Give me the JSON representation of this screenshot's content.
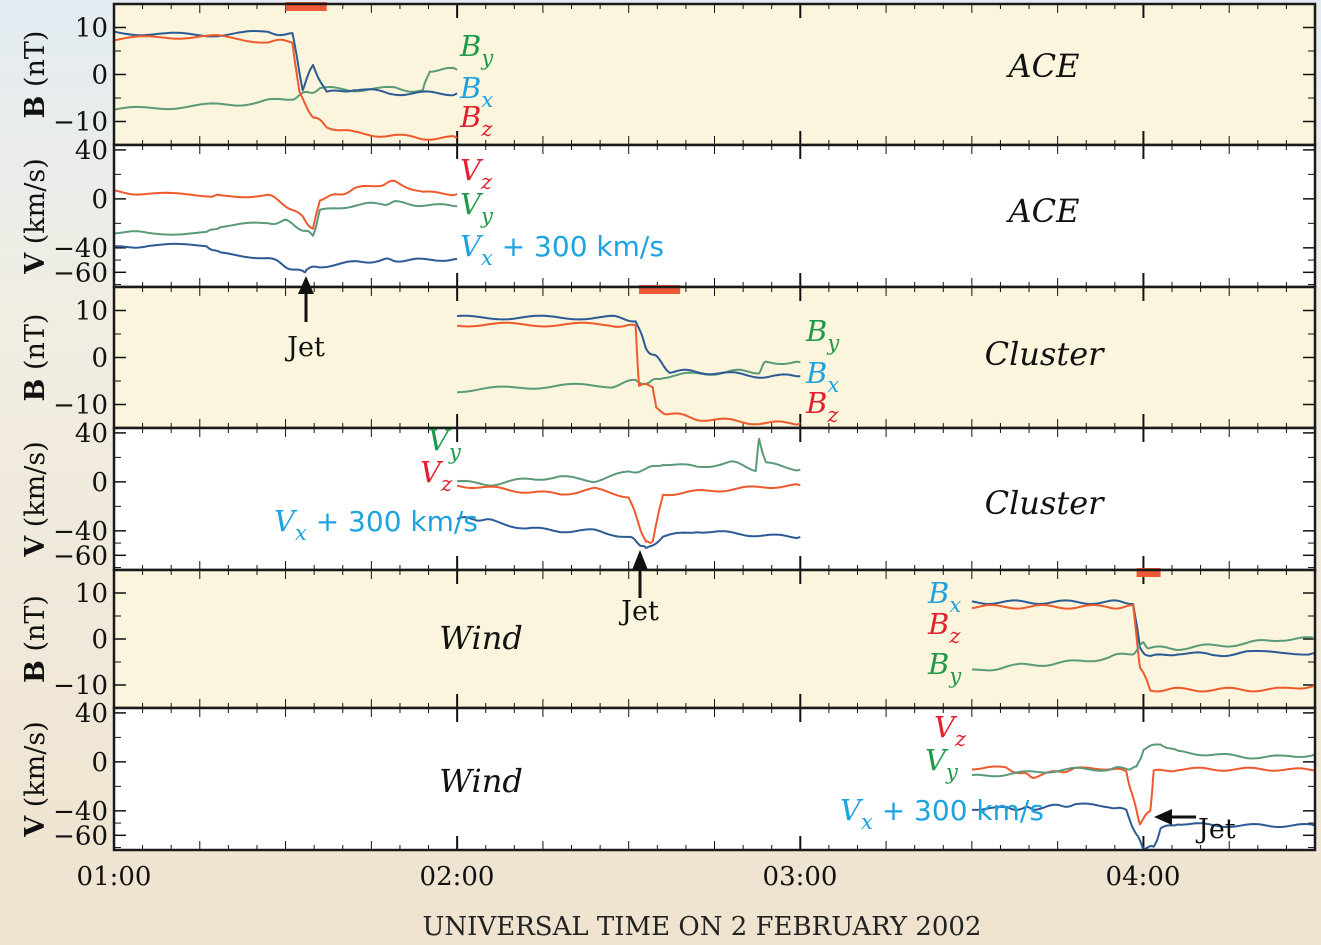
{
  "title": "",
  "x_axis": {
    "label": "UNIVERSAL TIME ON 2 FEBRUARY 2002",
    "ticks": [
      "01:00",
      "02:00",
      "03:00",
      "04:00"
    ]
  },
  "colors": {
    "bx": "#2c5a95",
    "by": "#5a9a78",
    "bz": "#ee5a2c",
    "label_x": "#1ea3e0",
    "label_y": "#1f9a4a",
    "label_z": "#e2202e",
    "shade": "#faf5dc",
    "marker": "#ee5a38"
  },
  "chart_data": [
    {
      "type": "line",
      "panel": "ACE magnetic field",
      "spacecraft": "ACE",
      "ylabel": "B (nT)",
      "yticks": [
        "10",
        "0",
        "−10"
      ],
      "ylim": [
        -15,
        15
      ],
      "xlim_hours": [
        1.0,
        4.5
      ],
      "interval_marker_hours": [
        1.5,
        1.62
      ],
      "series": [
        {
          "name": "By",
          "x": [
            1.0,
            1.15,
            1.3,
            1.42,
            1.52,
            1.56,
            1.6,
            1.7,
            1.82,
            1.9,
            1.92,
            2.0
          ],
          "y": [
            -7.5,
            -7,
            -6.5,
            -6,
            -5,
            -4,
            -3,
            -3.2,
            -3,
            -3.5,
            1,
            1
          ]
        },
        {
          "name": "Bx",
          "x": [
            1.0,
            1.15,
            1.3,
            1.45,
            1.52,
            1.55,
            1.58,
            1.62,
            1.7,
            1.8,
            1.9,
            2.0
          ],
          "y": [
            9,
            8.5,
            8.5,
            9,
            8.5,
            -3,
            2,
            -4,
            -3,
            -4,
            -4,
            -4
          ]
        },
        {
          "name": "Bz",
          "x": [
            1.0,
            1.15,
            1.3,
            1.45,
            1.52,
            1.54,
            1.58,
            1.62,
            1.7,
            1.8,
            1.9,
            2.0
          ],
          "y": [
            7.5,
            8,
            8,
            7,
            7,
            -4,
            -9,
            -11,
            -12.5,
            -13,
            -13.5,
            -13.5
          ]
        }
      ]
    },
    {
      "type": "line",
      "panel": "ACE velocity",
      "spacecraft": "ACE",
      "ylabel": "V (km/s)",
      "yticks": [
        "40",
        "0",
        "−40",
        "−60"
      ],
      "ylim": [
        -70,
        40
      ],
      "xlim_hours": [
        1.0,
        4.5
      ],
      "series": [
        {
          "name": "Vz",
          "x": [
            1.0,
            1.1,
            1.28,
            1.31,
            1.45,
            1.5,
            1.55,
            1.58,
            1.6,
            1.65,
            1.7,
            1.78,
            1.82,
            1.9,
            2.0
          ],
          "y": [
            6,
            4,
            3,
            2,
            3,
            -5,
            -15,
            -25,
            0,
            3,
            8,
            12,
            14,
            5,
            4
          ]
        },
        {
          "name": "Vy",
          "x": [
            1.0,
            1.1,
            1.27,
            1.31,
            1.45,
            1.5,
            1.55,
            1.58,
            1.6,
            1.7,
            1.78,
            1.82,
            1.9,
            2.0
          ],
          "y": [
            -27,
            -28,
            -28,
            -22,
            -20,
            -18,
            -25,
            -30,
            -10,
            -5,
            -4,
            -3,
            -5,
            -6
          ]
        },
        {
          "name": "Vx + 300 km/s",
          "x": [
            1.0,
            1.1,
            1.27,
            1.31,
            1.45,
            1.5,
            1.55,
            1.56,
            1.6,
            1.7,
            1.78,
            1.82,
            1.9,
            2.0
          ],
          "y": [
            -40,
            -38,
            -38,
            -45,
            -48,
            -55,
            -60,
            -58,
            -55,
            -52,
            -50,
            -50,
            -50,
            -49
          ]
        }
      ],
      "annotations": [
        {
          "text": "Jet",
          "x_hours": 1.56,
          "arrow": "up"
        }
      ]
    },
    {
      "type": "line",
      "panel": "Cluster magnetic field",
      "spacecraft": "Cluster",
      "ylabel": "B (nT)",
      "yticks": [
        "10",
        "0",
        "−10"
      ],
      "ylim": [
        -15,
        15
      ],
      "xlim_hours": [
        1.0,
        4.5
      ],
      "interval_marker_hours": [
        2.53,
        2.65
      ],
      "series": [
        {
          "name": "By",
          "x": [
            2.0,
            2.15,
            2.3,
            2.45,
            2.52,
            2.56,
            2.6,
            2.7,
            2.8,
            2.88,
            2.9,
            3.0
          ],
          "y": [
            -7,
            -6.5,
            -6,
            -6,
            -5,
            -5.5,
            -4,
            -3.5,
            -3,
            -3,
            -1,
            -1
          ]
        },
        {
          "name": "Bx",
          "x": [
            2.0,
            2.15,
            2.3,
            2.45,
            2.52,
            2.55,
            2.58,
            2.62,
            2.7,
            2.8,
            2.9,
            3.0
          ],
          "y": [
            8.5,
            8.5,
            8.5,
            8.5,
            8,
            2,
            0,
            -3,
            -3,
            -3.5,
            -4,
            -4
          ]
        },
        {
          "name": "Bz",
          "x": [
            2.0,
            2.15,
            2.3,
            2.45,
            2.52,
            2.53,
            2.57,
            2.58,
            2.62,
            2.7,
            2.8,
            2.9,
            3.0
          ],
          "y": [
            7,
            7,
            7,
            7,
            6.5,
            -6,
            -6,
            -11,
            -12,
            -13,
            -13.5,
            -14,
            -14
          ]
        }
      ]
    },
    {
      "type": "line",
      "panel": "Cluster velocity",
      "spacecraft": "Cluster",
      "ylabel": "V (km/s)",
      "yticks": [
        "40",
        "0",
        "−40",
        "−60"
      ],
      "ylim": [
        -70,
        40
      ],
      "xlim_hours": [
        1.0,
        4.5
      ],
      "series": [
        {
          "name": "Vy",
          "x": [
            2.0,
            2.1,
            2.2,
            2.3,
            2.4,
            2.5,
            2.55,
            2.6,
            2.7,
            2.8,
            2.87,
            2.88,
            2.9,
            3.0
          ],
          "y": [
            0,
            -2,
            2,
            4,
            1,
            8,
            10,
            15,
            12,
            16,
            10,
            35,
            15,
            10
          ]
        },
        {
          "name": "Vz",
          "x": [
            2.0,
            2.1,
            2.2,
            2.3,
            2.4,
            2.5,
            2.53,
            2.55,
            2.57,
            2.6,
            2.7,
            2.8,
            2.9,
            3.0
          ],
          "y": [
            -3,
            -5,
            -8,
            -10,
            -6,
            -12,
            -35,
            -50,
            -48,
            -10,
            -8,
            -6,
            -4,
            -3
          ]
        },
        {
          "name": "Vx + 300 km/s",
          "x": [
            2.0,
            2.05,
            2.1,
            2.2,
            2.3,
            2.4,
            2.5,
            2.53,
            2.55,
            2.6,
            2.7,
            2.8,
            2.9,
            3.0
          ],
          "y": [
            -30,
            -30,
            -32,
            -38,
            -40,
            -40,
            -45,
            -50,
            -55,
            -45,
            -40,
            -42,
            -44,
            -45
          ]
        }
      ],
      "annotations": [
        {
          "text": "Jet",
          "x_hours": 2.55,
          "arrow": "up"
        }
      ]
    },
    {
      "type": "line",
      "panel": "Wind magnetic field",
      "spacecraft": "Wind",
      "ylabel": "B (nT)",
      "yticks": [
        "10",
        "0",
        "−10"
      ],
      "ylim": [
        -15,
        15
      ],
      "xlim_hours": [
        1.0,
        4.5
      ],
      "interval_marker_hours": [
        3.98,
        4.05
      ],
      "series": [
        {
          "name": "Bx",
          "x": [
            3.5,
            3.6,
            3.7,
            3.8,
            3.9,
            3.97,
            3.99,
            4.02,
            4.1,
            4.2,
            4.3,
            4.5
          ],
          "y": [
            8,
            8,
            8,
            8,
            8,
            8,
            -2,
            -4,
            -3,
            -3.5,
            -3,
            -3
          ]
        },
        {
          "name": "Bz",
          "x": [
            3.5,
            3.6,
            3.7,
            3.8,
            3.9,
            3.97,
            3.99,
            4.02,
            4.1,
            4.2,
            4.3,
            4.4,
            4.5
          ],
          "y": [
            7,
            7,
            7,
            7,
            7,
            7,
            -6,
            -11,
            -11,
            -11,
            -11,
            -11,
            -10
          ]
        },
        {
          "name": "By",
          "x": [
            3.5,
            3.6,
            3.7,
            3.8,
            3.9,
            3.97,
            4.0,
            4.02,
            4.1,
            4.2,
            4.3,
            4.4,
            4.5
          ],
          "y": [
            -7,
            -6,
            -5.5,
            -5,
            -4,
            -3,
            -1,
            -2,
            -2,
            -1.5,
            -1,
            0,
            0
          ]
        }
      ]
    },
    {
      "type": "line",
      "panel": "Wind velocity",
      "spacecraft": "Wind",
      "ylabel": "V (km/s)",
      "yticks": [
        "40",
        "0",
        "−40",
        "−60"
      ],
      "ylim": [
        -70,
        40
      ],
      "xlim_hours": [
        1.0,
        4.5
      ],
      "series": [
        {
          "name": "Vz",
          "x": [
            3.5,
            3.6,
            3.65,
            3.68,
            3.75,
            3.8,
            3.9,
            3.95,
            3.97,
            3.99,
            4.02,
            4.03,
            4.1,
            4.2,
            4.3,
            4.4,
            4.5
          ],
          "y": [
            -5,
            -5,
            -10,
            -12,
            -8,
            -6,
            -5,
            -8,
            -30,
            -50,
            -40,
            -8,
            -6,
            -6,
            -6,
            -6,
            -7
          ]
        },
        {
          "name": "Vy",
          "x": [
            3.5,
            3.6,
            3.7,
            3.8,
            3.9,
            3.95,
            3.98,
            4.0,
            4.05,
            4.1,
            4.2,
            4.3,
            4.4,
            4.5
          ],
          "y": [
            -12,
            -10,
            -8,
            -6,
            -6,
            -5,
            -5,
            10,
            15,
            8,
            6,
            4,
            4,
            6
          ]
        },
        {
          "name": "Vx + 300 km/s",
          "x": [
            3.5,
            3.6,
            3.65,
            3.68,
            3.75,
            3.8,
            3.9,
            3.95,
            3.98,
            4.0,
            4.03,
            4.05,
            4.1,
            4.2,
            4.3,
            4.4,
            4.5
          ],
          "y": [
            -38,
            -38,
            -38,
            -38,
            -36,
            -35,
            -36,
            -40,
            -60,
            -70,
            -70,
            -55,
            -50,
            -52,
            -52,
            -52,
            -52
          ]
        }
      ],
      "annotations": [
        {
          "text": "Jet",
          "x_hours": 4.03,
          "arrow": "left"
        }
      ]
    }
  ]
}
